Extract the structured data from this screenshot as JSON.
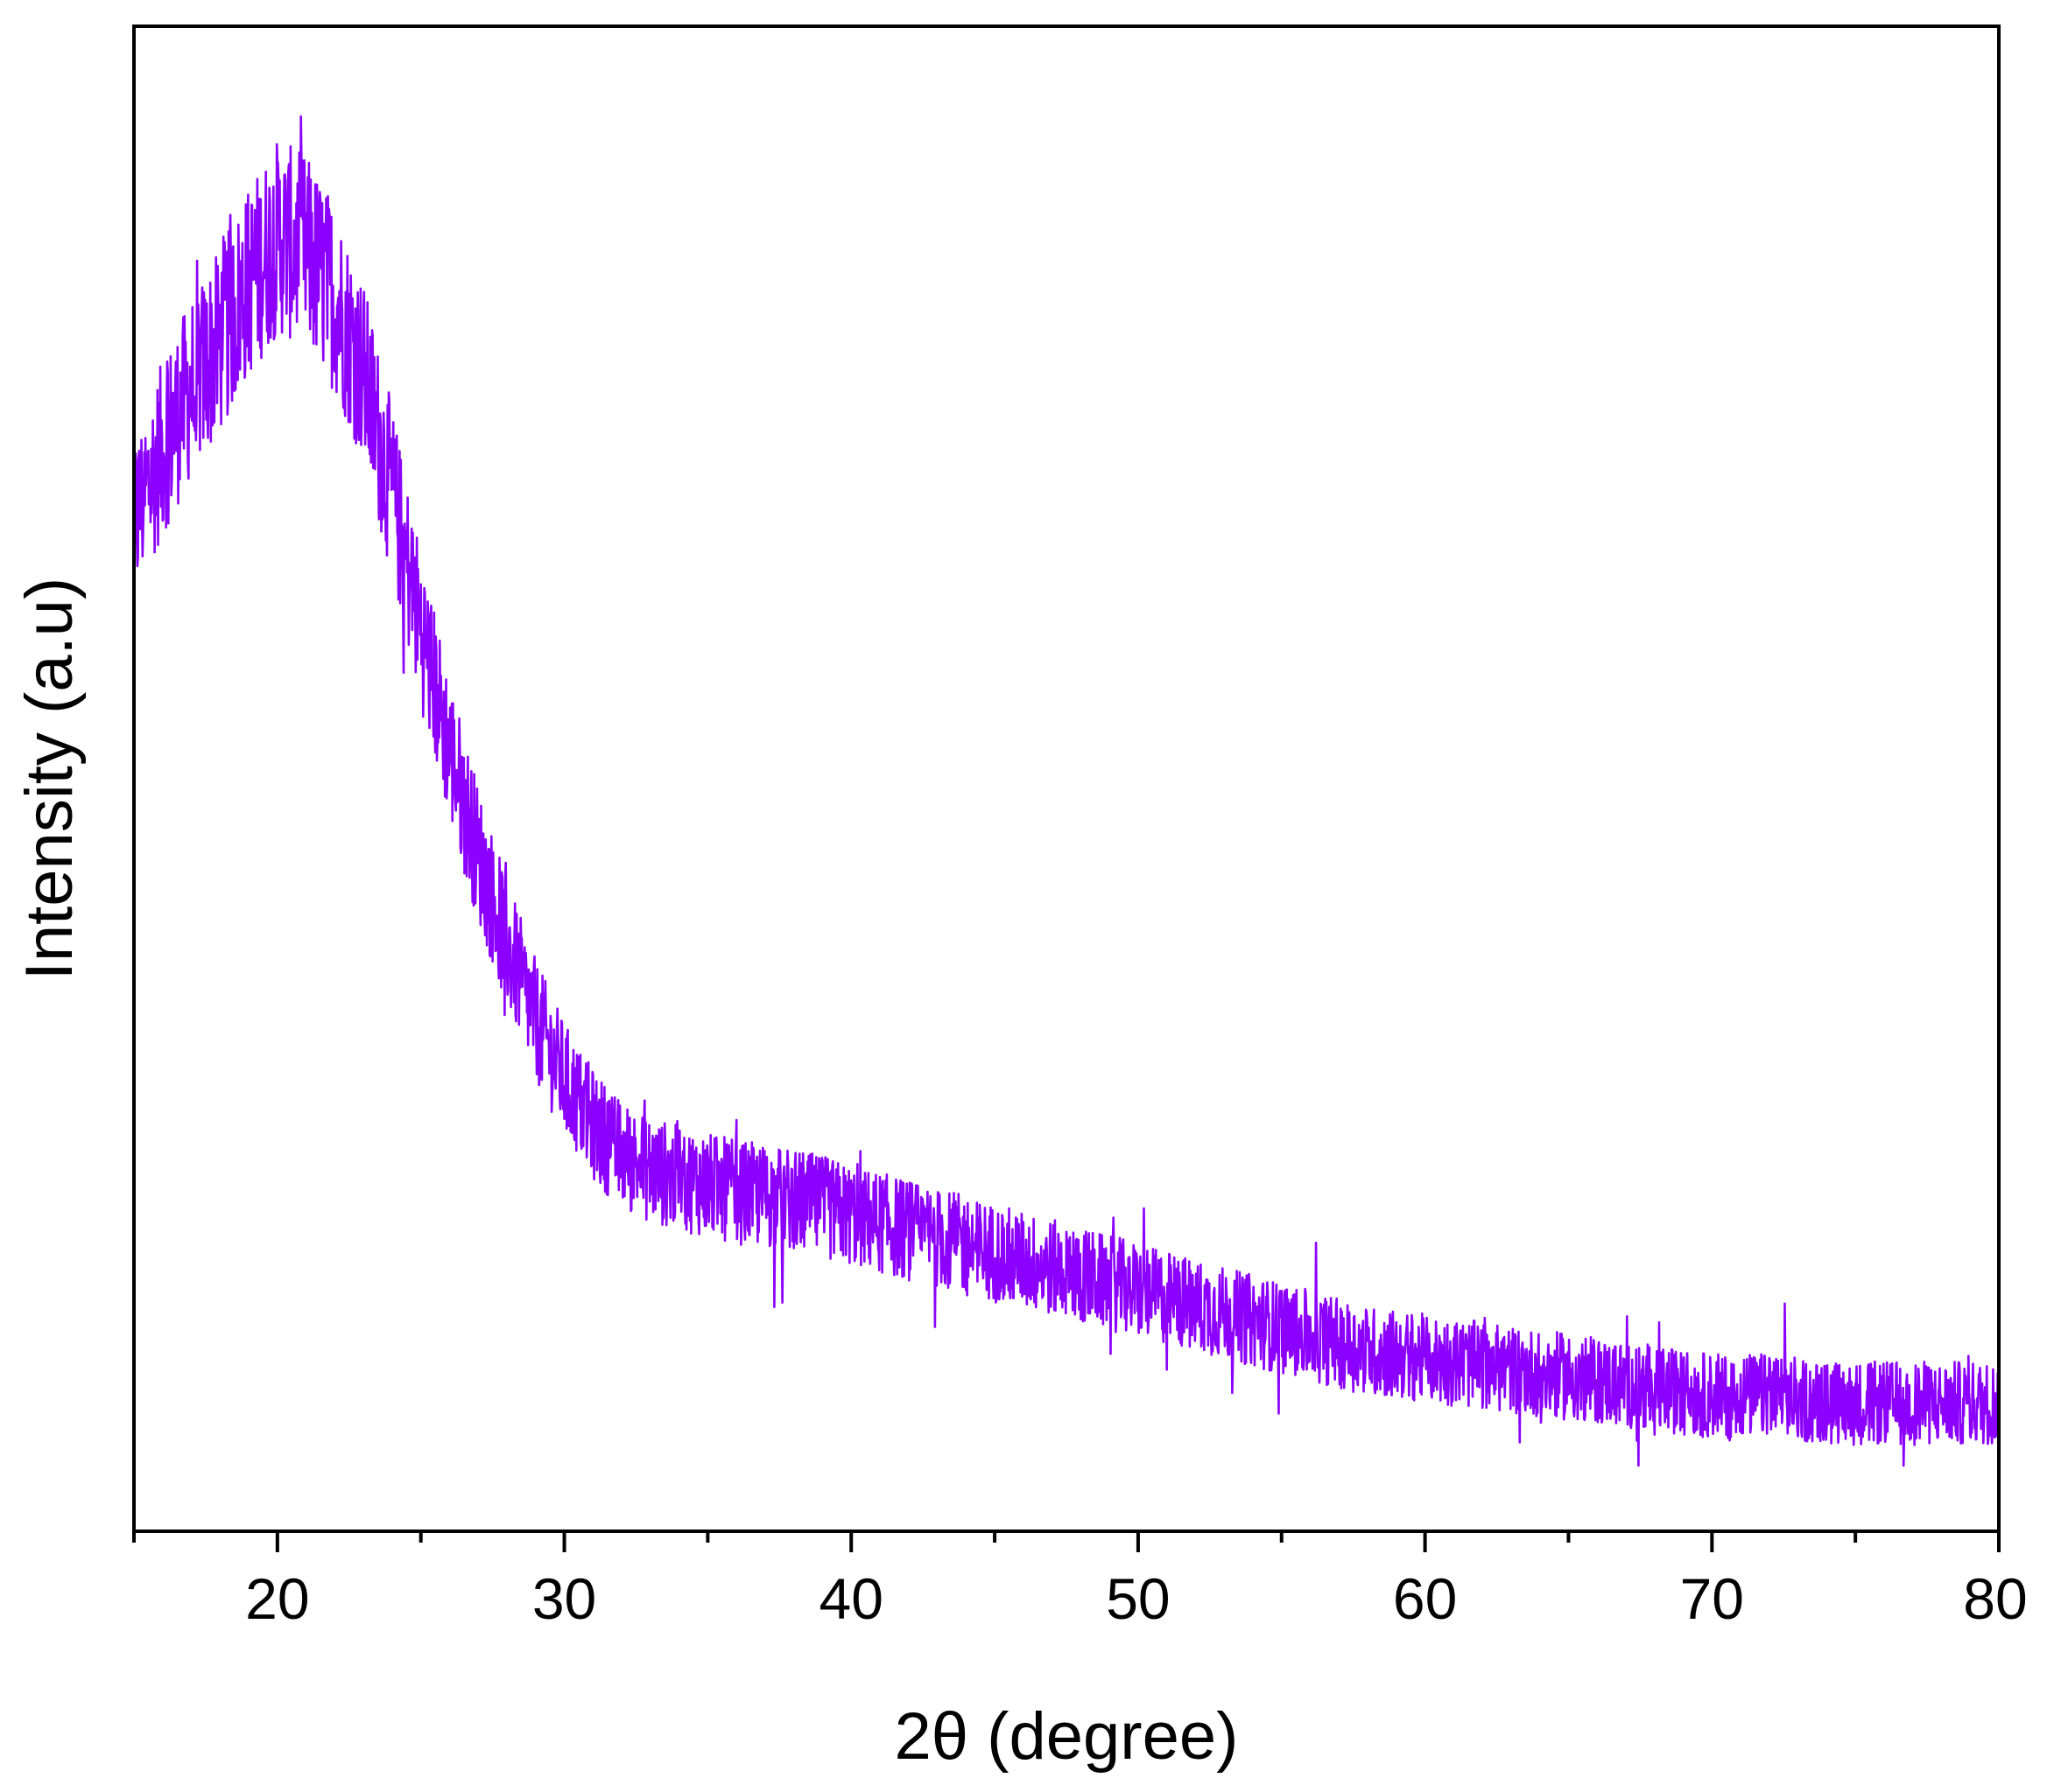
{
  "chart_data": {
    "type": "line",
    "title": "",
    "xlabel": "2θ (degree)",
    "ylabel": "Intensity (a.u)",
    "xlim": [
      15,
      80
    ],
    "ylim": [
      0,
      1
    ],
    "x_ticks": [
      20,
      30,
      40,
      50,
      60,
      70,
      80
    ],
    "x_tick_labels": [
      "20",
      "30",
      "40",
      "50",
      "60",
      "70",
      "80"
    ],
    "x_minor_ticks": [
      15,
      25,
      35,
      45,
      55,
      65,
      75
    ],
    "y_tick_labels_shown": false,
    "grid": false,
    "legend": "none",
    "series": [
      {
        "color": "#8B00FF",
        "noise_amplitude": 0.04,
        "x": [
          15,
          16,
          17,
          18,
          19,
          20,
          21,
          22,
          23,
          24,
          25,
          26,
          27,
          28,
          29,
          30,
          31,
          32,
          33,
          34,
          35,
          36,
          38,
          40,
          42,
          44,
          46,
          48,
          50,
          52,
          54,
          56,
          58,
          60,
          62,
          64,
          66,
          68,
          70,
          72,
          74,
          76,
          78,
          80
        ],
        "y": [
          0.67,
          0.72,
          0.76,
          0.79,
          0.83,
          0.86,
          0.85,
          0.82,
          0.77,
          0.69,
          0.6,
          0.52,
          0.45,
          0.39,
          0.34,
          0.3,
          0.27,
          0.25,
          0.24,
          0.235,
          0.23,
          0.225,
          0.22,
          0.21,
          0.2,
          0.19,
          0.18,
          0.17,
          0.16,
          0.15,
          0.14,
          0.13,
          0.12,
          0.115,
          0.11,
          0.105,
          0.1,
          0.095,
          0.09,
          0.09,
          0.085,
          0.085,
          0.085,
          0.085
        ]
      }
    ]
  }
}
